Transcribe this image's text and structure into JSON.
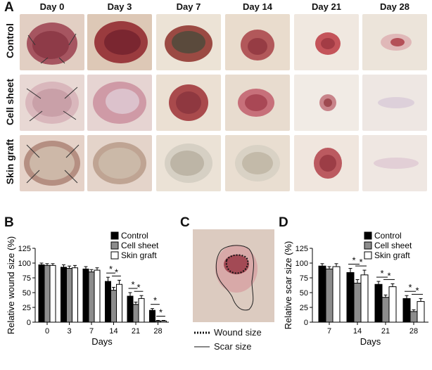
{
  "panel_a": {
    "letter": "A",
    "day_headers": [
      "Day 0",
      "Day 3",
      "Day 7",
      "Day 14",
      "Day 21",
      "Day 28"
    ],
    "row_labels": [
      "Control",
      "Cell sheet",
      "Skin graft"
    ]
  },
  "panel_c": {
    "letter": "C",
    "legend": [
      {
        "label": "Wound size",
        "style": "dotted"
      },
      {
        "label": "Scar size",
        "style": "solid"
      }
    ]
  },
  "colors": {
    "control": "#000000",
    "cell_sheet": "#8c8c8c",
    "skin_graft": "#ffffff"
  },
  "chart_data": [
    {
      "panel": "B",
      "type": "bar",
      "categories": [
        "0",
        "3",
        "7",
        "14",
        "21",
        "28"
      ],
      "xlabel": "Days",
      "ylabel": "Relative wound size (%)",
      "ylim": [
        0,
        125
      ],
      "yticks": [
        0,
        25,
        50,
        75,
        100,
        125
      ],
      "legend_position": "top-right",
      "series": [
        {
          "name": "Control",
          "values": [
            97,
            93,
            90,
            69,
            44,
            20
          ],
          "errors": [
            3,
            4,
            4,
            7,
            6,
            3
          ]
        },
        {
          "name": "Cell sheet",
          "values": [
            96,
            91,
            85,
            54,
            30,
            2
          ],
          "errors": [
            3,
            4,
            4,
            5,
            4,
            1
          ]
        },
        {
          "name": "Skin graft",
          "values": [
            96,
            92,
            88,
            64,
            40,
            2
          ],
          "errors": [
            3,
            4,
            4,
            7,
            5,
            1
          ]
        }
      ],
      "significance": [
        {
          "category": "14",
          "marks": [
            "*",
            "*"
          ]
        },
        {
          "category": "21",
          "marks": [
            "*",
            "*"
          ]
        },
        {
          "category": "28",
          "marks": [
            "*",
            "*"
          ]
        }
      ]
    },
    {
      "panel": "D",
      "type": "bar",
      "categories": [
        "7",
        "14",
        "21",
        "28"
      ],
      "xlabel": "Days",
      "ylabel": "Relative scar size (%)",
      "ylim": [
        0,
        125
      ],
      "yticks": [
        0,
        25,
        50,
        75,
        100,
        125
      ],
      "legend_position": "top-right",
      "series": [
        {
          "name": "Control",
          "values": [
            95,
            84,
            64,
            40
          ],
          "errors": [
            4,
            7,
            5,
            5
          ]
        },
        {
          "name": "Cell sheet",
          "values": [
            90,
            66,
            42,
            18
          ],
          "errors": [
            4,
            6,
            4,
            3
          ]
        },
        {
          "name": "Skin graft",
          "values": [
            94,
            80,
            60,
            35
          ],
          "errors": [
            5,
            8,
            5,
            5
          ]
        }
      ],
      "significance": [
        {
          "category": "14",
          "marks": [
            "*",
            "*"
          ]
        },
        {
          "category": "21",
          "marks": [
            "*",
            "*"
          ]
        },
        {
          "category": "28",
          "marks": [
            "*",
            "*"
          ]
        }
      ]
    }
  ]
}
